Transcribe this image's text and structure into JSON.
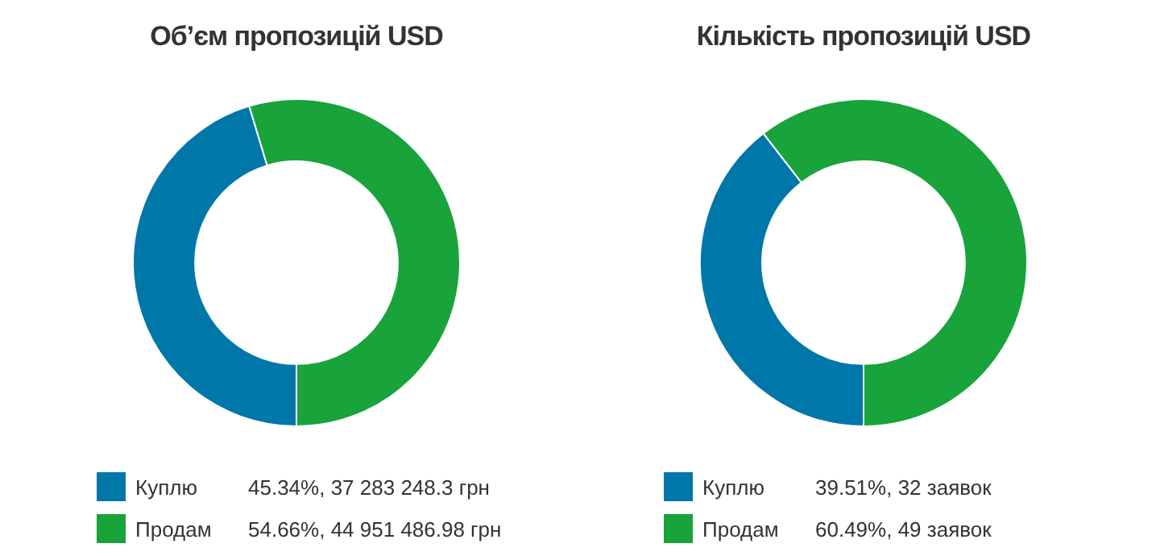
{
  "chart_data": [
    {
      "type": "donut",
      "title": "Об’єм пропозицій USD",
      "categories": [
        "Куплю",
        "Продам"
      ],
      "values": [
        37283248.3,
        44951486.98
      ],
      "colors": [
        "#0077a9",
        "#19a33b"
      ],
      "value_labels": [
        "45.34%, 37 283 248.3 грн",
        "54.66%, 44 951 486.98 грн"
      ],
      "legend": "bottom"
    },
    {
      "type": "donut",
      "title": "Кількість пропозицій USD",
      "categories": [
        "Куплю",
        "Продам"
      ],
      "values": [
        32,
        49
      ],
      "colors": [
        "#0077a9",
        "#19a33b"
      ],
      "value_labels": [
        "39.51%, 32 заявок",
        "60.49%, 49 заявок"
      ],
      "legend": "bottom"
    }
  ]
}
